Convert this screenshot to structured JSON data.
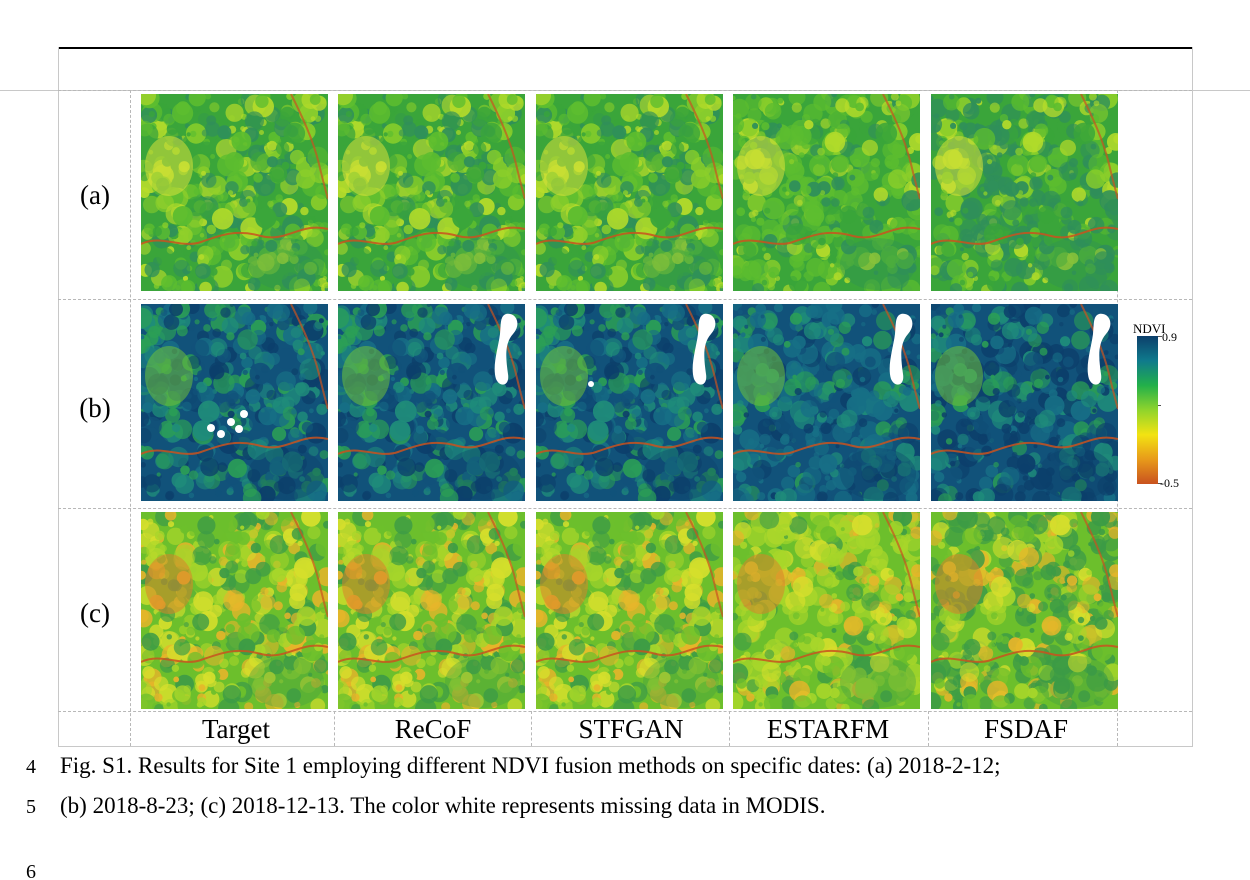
{
  "figure": {
    "row_labels": [
      "(a)",
      "(b)",
      "(c)"
    ],
    "column_labels": [
      "Target",
      "ReCoF",
      "STFGAN",
      "ESTARFM",
      "FSDAF"
    ],
    "colorbar": {
      "title": "NDVI",
      "max_label": "0.9",
      "min_label": "-0.5",
      "colors": [
        "#0c3f6b",
        "#0f7a8c",
        "#22b04a",
        "#8fd42c",
        "#f2e312",
        "#e89a1a",
        "#c9521f"
      ]
    },
    "rows": [
      {
        "label": "(a)",
        "palette": [
          "#3aa53a",
          "#5cbd2f",
          "#8ccf2a",
          "#b6dc2a",
          "#2f8f5a"
        ],
        "accent": "#d8e23a"
      },
      {
        "label": "(b)",
        "palette": [
          "#11527a",
          "#176f86",
          "#1f8c7a",
          "#2b9f55",
          "#0c3f6b"
        ],
        "accent": "#6fbf3a"
      },
      {
        "label": "(c)",
        "palette": [
          "#6cbf2c",
          "#a7d62a",
          "#d6df2c",
          "#e7b52a",
          "#3c9b46"
        ],
        "accent": "#d8832a"
      }
    ]
  },
  "caption": {
    "lines": [
      {
        "number": "4",
        "text": "Fig. S1. Results for Site 1 employing different NDVI fusion methods on specific dates: (a) 2018-2-12;"
      },
      {
        "number": "5",
        "text": "(b) 2018-8-23; (c) 2018-12-13. The color white represents missing data in MODIS."
      },
      {
        "number": "6",
        "text": ""
      }
    ]
  }
}
